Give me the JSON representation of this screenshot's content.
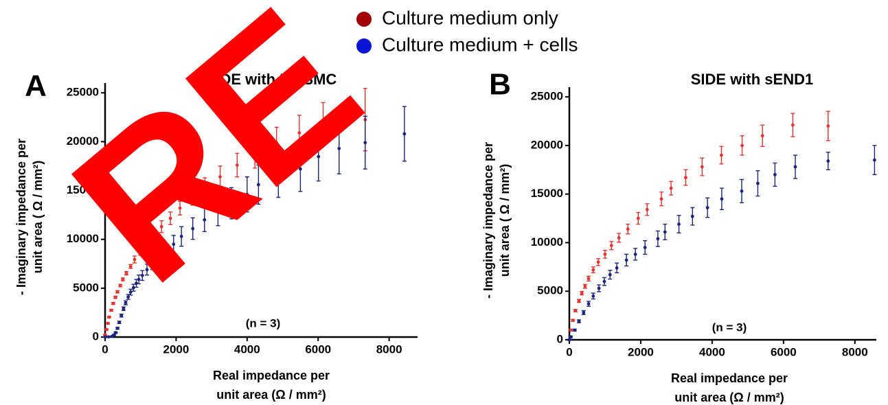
{
  "legend": {
    "entries": [
      {
        "label": "Culture medium only",
        "color": "#a00000"
      },
      {
        "label": "Culture medium + cells",
        "color": "#0a14d6"
      }
    ]
  },
  "watermark": "RE",
  "chart_data": [
    {
      "type": "scatter",
      "panel_label": "A",
      "title": "SIDE with MASMC",
      "annotation": "(n = 3)",
      "xlabel": [
        "Real impedance per",
        "unit area (Ω / mm²)"
      ],
      "ylabel": [
        "- Imaginary impedance per",
        "unit area ( Ω / mm²)"
      ],
      "xlim": [
        0,
        8800
      ],
      "ylim": [
        0,
        26000
      ],
      "xticks": [
        0,
        2000,
        4000,
        6000,
        8000
      ],
      "yticks": [
        0,
        5000,
        10000,
        15000,
        20000,
        25000
      ],
      "series": [
        {
          "color": "#e8322f",
          "x": [
            0,
            40,
            80,
            115,
            175,
            230,
            290,
            350,
            430,
            500,
            600,
            720,
            830,
            990,
            1160,
            1380,
            1590,
            1840,
            2110,
            2460,
            2810,
            3240,
            3720,
            4220,
            4830,
            5470,
            6140,
            7325
          ],
          "values": [
            210,
            770,
            1400,
            2040,
            2740,
            3440,
            4070,
            4630,
            5270,
            5900,
            6530,
            7230,
            7940,
            8780,
            9550,
            10460,
            11300,
            12150,
            13200,
            14300,
            15400,
            16400,
            17600,
            18700,
            19870,
            20900,
            22000,
            22260
          ],
          "errors": [
            50,
            60,
            70,
            80,
            90,
            100,
            110,
            120,
            130,
            150,
            170,
            200,
            350,
            400,
            450,
            500,
            600,
            650,
            700,
            800,
            900,
            1100,
            1200,
            1400,
            1600,
            1800,
            2000,
            3200
          ]
        },
        {
          "color": "#1a2480",
          "x": [
            0,
            100,
            200,
            250,
            300,
            350,
            400,
            460,
            520,
            580,
            650,
            720,
            800,
            880,
            950,
            1050,
            1180,
            1330,
            1480,
            1650,
            1930,
            2150,
            2470,
            2800,
            3180,
            3560,
            4000,
            4320,
            4880,
            5500,
            6010,
            6590,
            7325,
            8430
          ],
          "values": [
            0,
            20,
            80,
            200,
            450,
            900,
            1500,
            2200,
            2900,
            3500,
            4100,
            4600,
            5050,
            5500,
            5900,
            6300,
            6900,
            7500,
            8200,
            8750,
            9500,
            10300,
            11100,
            12000,
            12800,
            13700,
            14600,
            15600,
            16500,
            17200,
            18470,
            19300,
            19900,
            20800
          ],
          "errors": [
            20,
            30,
            40,
            60,
            80,
            100,
            120,
            150,
            180,
            200,
            250,
            300,
            350,
            400,
            450,
            500,
            550,
            600,
            700,
            800,
            900,
            1000,
            1100,
            1200,
            1400,
            1600,
            1800,
            2000,
            2200,
            2300,
            2500,
            2600,
            2700,
            2800
          ]
        }
      ]
    },
    {
      "type": "scatter",
      "panel_label": "B",
      "title": "SIDE with sEND1",
      "annotation": "(n = 3)",
      "xlabel": [
        "Real impedance per",
        "unit area (Ω / mm²)"
      ],
      "ylabel": [
        "- Imaginary impedance per",
        "unit area ( Ω / mm²)"
      ],
      "xlim": [
        0,
        8600
      ],
      "ylim": [
        0,
        26000
      ],
      "xticks": [
        0,
        2000,
        4000,
        6000,
        8000
      ],
      "yticks": [
        0,
        5000,
        10000,
        15000,
        20000,
        25000
      ],
      "series": [
        {
          "color": "#e8322f",
          "x": [
            0,
            40,
            100,
            170,
            270,
            350,
            440,
            540,
            670,
            810,
            1000,
            1180,
            1390,
            1640,
            1930,
            2180,
            2580,
            2850,
            3260,
            3720,
            4260,
            4840,
            5410,
            6260,
            7250
          ],
          "values": [
            0,
            1000,
            2000,
            3000,
            4000,
            4800,
            5500,
            6300,
            7200,
            8000,
            8800,
            9700,
            10500,
            11400,
            12500,
            13400,
            14500,
            15600,
            16700,
            17800,
            19000,
            20000,
            21000,
            22100,
            22000
          ],
          "errors": [
            50,
            80,
            100,
            120,
            150,
            180,
            200,
            250,
            300,
            350,
            400,
            420,
            450,
            500,
            600,
            600,
            700,
            700,
            800,
            900,
            900,
            1000,
            1100,
            1200,
            1500
          ]
        },
        {
          "color": "#1a2480",
          "x": [
            0,
            40,
            150,
            270,
            400,
            540,
            670,
            830,
            980,
            1140,
            1330,
            1600,
            1850,
            2120,
            2480,
            2680,
            3070,
            3450,
            3870,
            4270,
            4830,
            5280,
            5760,
            6330,
            7250,
            8550
          ],
          "values": [
            0,
            300,
            1000,
            1900,
            2800,
            3700,
            4500,
            5300,
            6000,
            6700,
            7400,
            8200,
            8800,
            9500,
            10400,
            11100,
            11900,
            12700,
            13600,
            14500,
            15300,
            16100,
            17000,
            17800,
            18400,
            18500
          ],
          "errors": [
            50,
            80,
            100,
            150,
            200,
            250,
            300,
            350,
            400,
            450,
            500,
            600,
            600,
            700,
            800,
            800,
            900,
            900,
            1000,
            1100,
            1200,
            1300,
            1200,
            1200,
            900,
            1500
          ]
        }
      ]
    }
  ]
}
